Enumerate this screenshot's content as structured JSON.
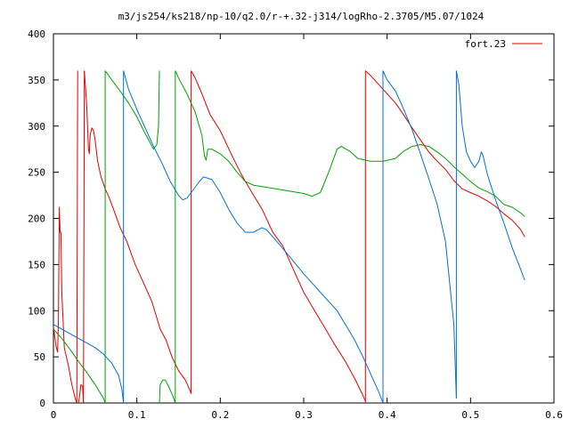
{
  "chart_data": {
    "type": "line",
    "title": "m3/js254/ks218/np-10/q2.0/r-+.32-j314/logRho-2.3705/M5.07/1024",
    "xlabel": "",
    "ylabel": "",
    "xlim": [
      0,
      0.6
    ],
    "ylim": [
      0,
      400
    ],
    "xticks": [
      "0",
      "0.1",
      "0.2",
      "0.3",
      "0.4",
      "0.5",
      "0.6"
    ],
    "yticks": [
      "0",
      "50",
      "100",
      "150",
      "200",
      "250",
      "300",
      "350",
      "400"
    ],
    "legend": {
      "position": "top-right",
      "entries": [
        {
          "label": "fort.23",
          "color": "#e00000"
        }
      ]
    },
    "grid": false,
    "series": [
      {
        "color": "#e00000",
        "segments": [
          [
            [
              0.0,
              83
            ],
            [
              0.003,
              62
            ],
            [
              0.005,
              55
            ],
            [
              0.006,
              90
            ],
            [
              0.007,
              212
            ],
            [
              0.008,
              185
            ],
            [
              0.009,
              185
            ],
            [
              0.01,
              120
            ],
            [
              0.013,
              60
            ],
            [
              0.018,
              40
            ],
            [
              0.022,
              20
            ],
            [
              0.026,
              5
            ],
            [
              0.028,
              0
            ]
          ],
          [
            [
              0.028,
              0
            ],
            [
              0.029,
              360
            ]
          ],
          [
            [
              0.03,
              0
            ],
            [
              0.031,
              5
            ],
            [
              0.033,
              20
            ],
            [
              0.035,
              18
            ],
            [
              0.036,
              0
            ]
          ],
          [
            [
              0.036,
              0
            ],
            [
              0.037,
              360
            ]
          ],
          [
            [
              0.037,
              360
            ],
            [
              0.04,
              320
            ],
            [
              0.042,
              275
            ],
            [
              0.043,
              270
            ],
            [
              0.044,
              290
            ],
            [
              0.046,
              298
            ],
            [
              0.048,
              295
            ],
            [
              0.05,
              285
            ],
            [
              0.053,
              262
            ],
            [
              0.057,
              245
            ],
            [
              0.062,
              232
            ],
            [
              0.067,
              222
            ],
            [
              0.072,
              210
            ],
            [
              0.08,
              190
            ],
            [
              0.088,
              175
            ],
            [
              0.098,
              150
            ],
            [
              0.108,
              130
            ],
            [
              0.118,
              110
            ],
            [
              0.128,
              80
            ],
            [
              0.135,
              68
            ],
            [
              0.142,
              50
            ],
            [
              0.15,
              35
            ],
            [
              0.158,
              25
            ],
            [
              0.163,
              15
            ],
            [
              0.165,
              10
            ]
          ],
          [
            [
              0.165,
              10
            ],
            [
              0.165,
              360
            ]
          ],
          [
            [
              0.165,
              360
            ],
            [
              0.17,
              352
            ],
            [
              0.178,
              335
            ],
            [
              0.188,
              312
            ],
            [
              0.2,
              295
            ],
            [
              0.213,
              270
            ],
            [
              0.225,
              248
            ],
            [
              0.238,
              228
            ],
            [
              0.25,
              210
            ],
            [
              0.263,
              185
            ],
            [
              0.275,
              170
            ],
            [
              0.29,
              140
            ],
            [
              0.3,
              120
            ],
            [
              0.313,
              100
            ],
            [
              0.325,
              82
            ],
            [
              0.338,
              62
            ],
            [
              0.35,
              45
            ],
            [
              0.362,
              25
            ],
            [
              0.37,
              10
            ],
            [
              0.374,
              2
            ]
          ],
          [
            [
              0.374,
              0
            ],
            [
              0.374,
              360
            ]
          ],
          [
            [
              0.374,
              360
            ],
            [
              0.38,
              355
            ],
            [
              0.39,
              345
            ],
            [
              0.4,
              335
            ],
            [
              0.41,
              325
            ],
            [
              0.42,
              312
            ],
            [
              0.43,
              298
            ],
            [
              0.44,
              285
            ],
            [
              0.45,
              272
            ],
            [
              0.46,
              262
            ],
            [
              0.47,
              253
            ],
            [
              0.48,
              241
            ],
            [
              0.49,
              232
            ],
            [
              0.5,
              228
            ],
            [
              0.51,
              224
            ],
            [
              0.52,
              219
            ],
            [
              0.53,
              213
            ],
            [
              0.54,
              205
            ],
            [
              0.55,
              198
            ],
            [
              0.56,
              188
            ],
            [
              0.565,
              180
            ]
          ]
        ]
      },
      {
        "color": "#00a000",
        "segments": [
          [
            [
              0.0,
              80
            ],
            [
              0.01,
              70
            ],
            [
              0.02,
              58
            ],
            [
              0.03,
              45
            ],
            [
              0.04,
              33
            ],
            [
              0.05,
              20
            ],
            [
              0.06,
              5
            ],
            [
              0.062,
              0
            ]
          ],
          [
            [
              0.062,
              0
            ],
            [
              0.062,
              360
            ]
          ],
          [
            [
              0.062,
              360
            ],
            [
              0.07,
              350
            ],
            [
              0.08,
              338
            ],
            [
              0.09,
              325
            ],
            [
              0.1,
              310
            ],
            [
              0.11,
              292
            ],
            [
              0.12,
              275
            ],
            [
              0.124,
              280
            ],
            [
              0.126,
              300
            ],
            [
              0.127,
              360
            ]
          ],
          [
            [
              0.127,
              0
            ],
            [
              0.128,
              20
            ],
            [
              0.131,
              25
            ],
            [
              0.134,
              25
            ],
            [
              0.138,
              18
            ],
            [
              0.143,
              8
            ],
            [
              0.146,
              0
            ]
          ],
          [
            [
              0.146,
              0
            ],
            [
              0.146,
              360
            ]
          ],
          [
            [
              0.146,
              360
            ],
            [
              0.15,
              352
            ],
            [
              0.16,
              335
            ],
            [
              0.17,
              315
            ],
            [
              0.178,
              290
            ],
            [
              0.181,
              268
            ],
            [
              0.183,
              263
            ],
            [
              0.185,
              275
            ],
            [
              0.19,
              275
            ],
            [
              0.2,
              270
            ],
            [
              0.21,
              262
            ],
            [
              0.22,
              250
            ],
            [
              0.23,
              240
            ],
            [
              0.24,
              236
            ],
            [
              0.26,
              233
            ],
            [
              0.28,
              230
            ],
            [
              0.3,
              227
            ],
            [
              0.31,
              224
            ],
            [
              0.32,
              228
            ],
            [
              0.33,
              250
            ],
            [
              0.34,
              275
            ],
            [
              0.345,
              278
            ],
            [
              0.355,
              273
            ],
            [
              0.365,
              265
            ],
            [
              0.38,
              262
            ],
            [
              0.395,
              262
            ],
            [
              0.41,
              265
            ],
            [
              0.42,
              273
            ],
            [
              0.43,
              278
            ],
            [
              0.44,
              280
            ],
            [
              0.45,
              278
            ],
            [
              0.46,
              272
            ],
            [
              0.47,
              265
            ],
            [
              0.48,
              256
            ],
            [
              0.49,
              248
            ],
            [
              0.5,
              240
            ],
            [
              0.51,
              233
            ],
            [
              0.52,
              229
            ],
            [
              0.53,
              224
            ],
            [
              0.54,
              215
            ],
            [
              0.55,
              212
            ],
            [
              0.56,
              206
            ],
            [
              0.565,
              202
            ]
          ]
        ]
      },
      {
        "color": "#0070d0",
        "segments": [
          [
            [
              0.0,
              85
            ],
            [
              0.01,
              80
            ],
            [
              0.02,
              75
            ],
            [
              0.03,
              70
            ],
            [
              0.04,
              65
            ],
            [
              0.05,
              60
            ],
            [
              0.06,
              53
            ],
            [
              0.07,
              43
            ],
            [
              0.078,
              30
            ],
            [
              0.082,
              15
            ],
            [
              0.084,
              0
            ]
          ],
          [
            [
              0.084,
              0
            ],
            [
              0.084,
              360
            ]
          ],
          [
            [
              0.084,
              360
            ],
            [
              0.09,
              340
            ],
            [
              0.1,
              318
            ],
            [
              0.11,
              298
            ],
            [
              0.12,
              278
            ],
            [
              0.13,
              260
            ],
            [
              0.14,
              240
            ],
            [
              0.15,
              225
            ],
            [
              0.155,
              220
            ],
            [
              0.16,
              222
            ],
            [
              0.165,
              228
            ],
            [
              0.175,
              240
            ],
            [
              0.18,
              245
            ],
            [
              0.19,
              242
            ],
            [
              0.2,
              228
            ],
            [
              0.21,
              210
            ],
            [
              0.22,
              195
            ],
            [
              0.23,
              185
            ],
            [
              0.24,
              185
            ],
            [
              0.25,
              190
            ],
            [
              0.255,
              188
            ],
            [
              0.265,
              178
            ],
            [
              0.28,
              162
            ],
            [
              0.3,
              140
            ],
            [
              0.32,
              120
            ],
            [
              0.34,
              100
            ],
            [
              0.35,
              85
            ],
            [
              0.36,
              70
            ],
            [
              0.37,
              52
            ],
            [
              0.38,
              32
            ],
            [
              0.39,
              12
            ],
            [
              0.395,
              0
            ]
          ],
          [
            [
              0.395,
              0
            ],
            [
              0.395,
              360
            ]
          ],
          [
            [
              0.395,
              360
            ],
            [
              0.4,
              350
            ],
            [
              0.41,
              338
            ],
            [
              0.42,
              318
            ],
            [
              0.43,
              296
            ],
            [
              0.44,
              270
            ],
            [
              0.45,
              243
            ],
            [
              0.46,
              215
            ],
            [
              0.47,
              175
            ],
            [
              0.48,
              85
            ],
            [
              0.483,
              5
            ]
          ],
          [
            [
              0.483,
              5
            ],
            [
              0.483,
              360
            ]
          ],
          [
            [
              0.483,
              360
            ],
            [
              0.486,
              345
            ],
            [
              0.49,
              300
            ],
            [
              0.495,
              272
            ],
            [
              0.5,
              262
            ],
            [
              0.505,
              255
            ],
            [
              0.51,
              262
            ],
            [
              0.513,
              272
            ],
            [
              0.515,
              268
            ],
            [
              0.52,
              248
            ],
            [
              0.53,
              220
            ],
            [
              0.54,
              195
            ],
            [
              0.55,
              168
            ],
            [
              0.56,
              145
            ],
            [
              0.565,
              133
            ]
          ]
        ]
      }
    ]
  }
}
